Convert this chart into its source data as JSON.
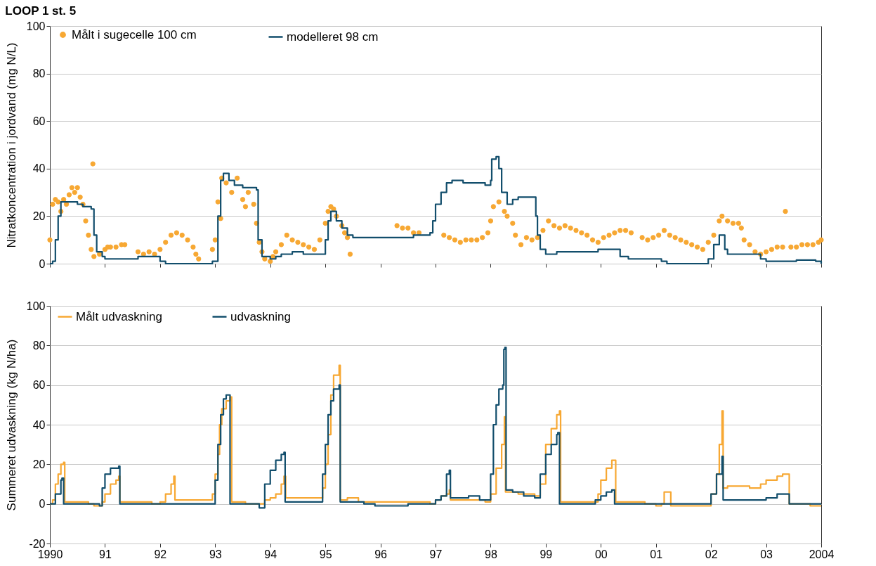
{
  "chart_data": [
    {
      "type": "step",
      "title": "LOOP 1 st. 5",
      "ylabel": "Nitratkoncentration i jordvand (mg N/L)",
      "xlim": [
        1990,
        2004
      ],
      "xticks": [
        {
          "value": 1990,
          "label": null
        },
        {
          "value": 1991,
          "label": null
        },
        {
          "value": 1992,
          "label": null
        },
        {
          "value": 1993,
          "label": null
        },
        {
          "value": 1994,
          "label": null
        },
        {
          "value": 1995,
          "label": null
        },
        {
          "value": 1996,
          "label": null
        },
        {
          "value": 1997,
          "label": null
        },
        {
          "value": 1998,
          "label": null
        },
        {
          "value": 1999,
          "label": null
        },
        {
          "value": 2000,
          "label": null
        },
        {
          "value": 2001,
          "label": null
        },
        {
          "value": 2002,
          "label": null
        },
        {
          "value": 2003,
          "label": null
        },
        {
          "value": 2004,
          "label": null
        }
      ],
      "ylim": [
        0,
        100
      ],
      "yticks": [
        0,
        20,
        40,
        60,
        80,
        100
      ],
      "grid": "y",
      "legend": "top left",
      "tick_labels": "y",
      "series": [
        {
          "name": "Målt i sugecelle 100 cm",
          "type": "scatter",
          "color": "#f7a833",
          "x": [
            1990.0,
            1990.05,
            1990.1,
            1990.15,
            1990.2,
            1990.25,
            1990.3,
            1990.35,
            1990.4,
            1990.45,
            1990.5,
            1990.55,
            1990.6,
            1990.65,
            1990.7,
            1990.75,
            1990.78,
            1990.8,
            1990.9,
            1991.0,
            1991.05,
            1991.1,
            1991.2,
            1991.3,
            1991.36,
            1991.6,
            1991.7,
            1991.8,
            1991.9,
            1992.0,
            1992.1,
            1992.2,
            1992.3,
            1992.4,
            1992.5,
            1992.6,
            1992.65,
            1992.7,
            1992.95,
            1993.0,
            1993.05,
            1993.1,
            1993.12,
            1993.2,
            1993.3,
            1993.4,
            1993.5,
            1993.55,
            1993.6,
            1993.7,
            1993.75,
            1993.8,
            1993.85,
            1993.9,
            1994.0,
            1994.05,
            1994.1,
            1994.2,
            1994.3,
            1994.4,
            1994.5,
            1994.6,
            1994.7,
            1994.8,
            1994.9,
            1995.0,
            1995.05,
            1995.1,
            1995.15,
            1995.2,
            1995.3,
            1995.35,
            1995.4,
            1995.45,
            1996.3,
            1996.4,
            1996.5,
            1996.6,
            1996.7,
            1997.15,
            1997.25,
            1997.35,
            1997.45,
            1997.55,
            1997.65,
            1997.75,
            1997.85,
            1997.95,
            1998.0,
            1998.05,
            1998.15,
            1998.25,
            1998.3,
            1998.4,
            1998.45,
            1998.55,
            1998.65,
            1998.75,
            1998.85,
            1998.95,
            1999.05,
            1999.15,
            1999.25,
            1999.35,
            1999.45,
            1999.55,
            1999.65,
            1999.75,
            1999.85,
            1999.95,
            2000.05,
            2000.15,
            2000.25,
            2000.35,
            2000.45,
            2000.55,
            2000.75,
            2000.85,
            2000.95,
            2001.05,
            2001.15,
            2001.25,
            2001.35,
            2001.45,
            2001.55,
            2001.65,
            2001.75,
            2001.85,
            2001.95,
            2002.05,
            2002.15,
            2002.2,
            2002.3,
            2002.4,
            2002.5,
            2002.55,
            2002.6,
            2002.7,
            2002.8,
            2002.9,
            2003.0,
            2003.1,
            2003.2,
            2003.3,
            2003.35,
            2003.45,
            2003.55,
            2003.65,
            2003.75,
            2003.85,
            2003.95,
            2004.0
          ],
          "values": [
            10,
            25,
            27,
            26,
            22,
            27,
            25,
            29,
            32,
            30,
            32,
            28,
            25,
            18,
            12,
            6,
            42,
            3,
            4,
            6,
            7,
            7,
            7,
            8,
            8,
            5,
            4,
            5,
            4,
            6,
            9,
            12,
            13,
            12,
            10,
            7,
            4,
            2,
            6,
            10,
            26,
            19,
            36,
            34,
            30,
            36,
            27,
            24,
            30,
            25,
            17,
            9,
            5,
            2,
            1,
            3,
            5,
            8,
            12,
            10,
            9,
            8,
            7,
            6,
            10,
            17,
            22,
            24,
            23,
            20,
            16,
            13,
            11,
            4,
            16,
            15,
            15,
            13,
            13,
            12,
            11,
            10,
            9,
            10,
            10,
            10,
            11,
            13,
            18,
            24,
            26,
            22,
            20,
            17,
            12,
            8,
            11,
            10,
            11,
            14,
            18,
            16,
            15,
            16,
            15,
            14,
            13,
            12,
            10,
            9,
            11,
            12,
            13,
            14,
            14,
            13,
            11,
            10,
            11,
            12,
            14,
            12,
            11,
            10,
            9,
            8,
            7,
            6,
            9,
            12,
            18,
            20,
            18,
            17,
            17,
            15,
            10,
            8,
            5,
            4,
            5,
            6,
            7,
            7,
            22,
            7,
            7,
            8,
            8,
            8,
            9,
            10
          ]
        },
        {
          "name": "modelleret 98 cm",
          "color": "#124e6c",
          "x": [
            1990.0,
            1990.05,
            1990.1,
            1990.15,
            1990.2,
            1990.4,
            1990.5,
            1990.6,
            1990.75,
            1990.8,
            1990.85,
            1990.95,
            1991.0,
            1991.5,
            1991.6,
            1991.9,
            1992.0,
            1992.1,
            1992.9,
            1992.95,
            1993.05,
            1993.1,
            1993.15,
            1993.25,
            1993.35,
            1993.5,
            1993.75,
            1993.78,
            1993.85,
            1994.0,
            1994.1,
            1994.2,
            1994.4,
            1994.6,
            1994.9,
            1995.0,
            1995.05,
            1995.1,
            1995.2,
            1995.3,
            1995.4,
            1995.5,
            1996.5,
            1996.6,
            1996.9,
            1996.95,
            1997.0,
            1997.1,
            1997.2,
            1997.3,
            1997.5,
            1997.9,
            1998.0,
            1998.02,
            1998.1,
            1998.15,
            1998.2,
            1998.3,
            1998.4,
            1998.5,
            1998.8,
            1998.82,
            1998.85,
            1998.9,
            1999.0,
            1999.2,
            1999.9,
            1999.95,
            2000.2,
            2000.35,
            2000.5,
            2001.0,
            2001.1,
            2001.2,
            2001.9,
            2001.95,
            2002.05,
            2002.15,
            2002.25,
            2002.3,
            2002.8,
            2002.9,
            2003.0,
            2003.5,
            2003.55,
            2003.9,
            2004.0
          ],
          "values": [
            0,
            1,
            10,
            20,
            26,
            26,
            25,
            24,
            23,
            12,
            5,
            3,
            2,
            2,
            3,
            3,
            1,
            0,
            0,
            1,
            20,
            35,
            38,
            35,
            33,
            32,
            31,
            10,
            3,
            2,
            3,
            4,
            5,
            4,
            4,
            10,
            18,
            22,
            18,
            15,
            12,
            11,
            11,
            12,
            13,
            18,
            25,
            30,
            34,
            35,
            34,
            33,
            35,
            44,
            45,
            40,
            30,
            25,
            27,
            28,
            28,
            20,
            12,
            6,
            4,
            5,
            5,
            6,
            6,
            3,
            2,
            2,
            1,
            0,
            0,
            2,
            8,
            12,
            6,
            4,
            4,
            2,
            1,
            1,
            1.5,
            1,
            0
          ]
        }
      ]
    },
    {
      "type": "step",
      "ylabel": "Summeret udvaskning (kg N/ha)",
      "xlim": [
        1990,
        2004
      ],
      "xticks": [
        {
          "value": 1990,
          "label": "1990"
        },
        {
          "value": 1991,
          "label": "91"
        },
        {
          "value": 1992,
          "label": "92"
        },
        {
          "value": 1993,
          "label": "93"
        },
        {
          "value": 1994,
          "label": "94"
        },
        {
          "value": 1995,
          "label": "95"
        },
        {
          "value": 1996,
          "label": "96"
        },
        {
          "value": 1997,
          "label": "97"
        },
        {
          "value": 1998,
          "label": "98"
        },
        {
          "value": 1999,
          "label": "99"
        },
        {
          "value": 2000,
          "label": "00"
        },
        {
          "value": 2001,
          "label": "01"
        },
        {
          "value": 2002,
          "label": "02"
        },
        {
          "value": 2003,
          "label": "03"
        },
        {
          "value": 2004,
          "label": "2004"
        }
      ],
      "ylim": [
        -20,
        100
      ],
      "yticks": [
        -20,
        0,
        20,
        40,
        60,
        80,
        100
      ],
      "grid": "y",
      "legend": "top left",
      "series": [
        {
          "name": "Målt udvaskning",
          "color": "#f7a833",
          "x": [
            1990.0,
            1990.05,
            1990.1,
            1990.15,
            1990.2,
            1990.25,
            1990.27,
            1990.5,
            1990.7,
            1990.8,
            1990.9,
            1990.95,
            1991.0,
            1991.1,
            1991.2,
            1991.25,
            1991.27,
            1991.8,
            1991.85,
            1992.0,
            1992.1,
            1992.2,
            1992.25,
            1992.27,
            1992.9,
            1992.95,
            1993.0,
            1993.05,
            1993.08,
            1993.12,
            1993.2,
            1993.27,
            1993.3,
            1993.5,
            1993.55,
            1993.8,
            1993.9,
            1994.0,
            1994.1,
            1994.2,
            1994.25,
            1994.28,
            1994.9,
            1994.95,
            1995.0,
            1995.05,
            1995.1,
            1995.15,
            1995.25,
            1995.27,
            1995.4,
            1995.6,
            1996.0,
            1996.9,
            1997.0,
            1997.1,
            1997.2,
            1997.25,
            1997.27,
            1997.9,
            1998.0,
            1998.1,
            1998.2,
            1998.25,
            1998.27,
            1998.5,
            1998.8,
            1998.9,
            1999.0,
            1999.1,
            1999.2,
            1999.25,
            1999.27,
            1999.9,
            1999.95,
            2000.0,
            2000.1,
            2000.2,
            2000.25,
            2000.27,
            2000.8,
            2001.0,
            2001.1,
            2001.15,
            2001.25,
            2001.27,
            2001.9,
            2002.0,
            2002.1,
            2002.15,
            2002.2,
            2002.22,
            2002.3,
            2002.7,
            2002.9,
            2003.0,
            2003.2,
            2003.3,
            2003.4,
            2003.42,
            2003.7,
            2003.8,
            2004.0
          ],
          "values": [
            0,
            2,
            10,
            15,
            20,
            21,
            1,
            1,
            0,
            -1,
            -1,
            1,
            5,
            10,
            12,
            14,
            1,
            1,
            0,
            1,
            5,
            10,
            14,
            2,
            2,
            5,
            15,
            25,
            40,
            48,
            52,
            54,
            1,
            1,
            0,
            0,
            2,
            3,
            5,
            10,
            14,
            3,
            3,
            8,
            20,
            35,
            55,
            65,
            70,
            2,
            3,
            1,
            1,
            0,
            2,
            4,
            5,
            7,
            2,
            1,
            5,
            18,
            30,
            44,
            6,
            5,
            4,
            10,
            30,
            38,
            45,
            47,
            1,
            1,
            5,
            12,
            18,
            22,
            22,
            1,
            0,
            -1,
            0,
            6,
            6,
            -1,
            -1,
            5,
            15,
            30,
            47,
            8,
            9,
            8,
            10,
            12,
            14,
            15,
            15,
            0,
            0,
            -1,
            -1
          ]
        },
        {
          "name": "udvaskning",
          "color": "#124e6c",
          "x": [
            1990.0,
            1990.1,
            1990.2,
            1990.22,
            1990.25,
            1990.5,
            1990.9,
            1990.95,
            1991.0,
            1991.1,
            1991.25,
            1991.27,
            1992.0,
            1992.9,
            1993.0,
            1993.05,
            1993.1,
            1993.15,
            1993.2,
            1993.25,
            1993.27,
            1993.5,
            1993.8,
            1993.9,
            1994.0,
            1994.1,
            1994.2,
            1994.25,
            1994.27,
            1994.8,
            1994.95,
            1995.0,
            1995.05,
            1995.1,
            1995.15,
            1995.25,
            1995.27,
            1995.5,
            1995.7,
            1995.9,
            1996.2,
            1996.5,
            1996.9,
            1997.0,
            1997.1,
            1997.2,
            1997.25,
            1997.27,
            1997.6,
            1997.8,
            1998.0,
            1998.05,
            1998.1,
            1998.15,
            1998.22,
            1998.24,
            1998.26,
            1998.28,
            1998.4,
            1998.6,
            1998.8,
            1998.9,
            1999.0,
            1999.1,
            1999.2,
            1999.22,
            1999.25,
            1999.8,
            1999.9,
            2000.0,
            2000.1,
            2000.2,
            2000.25,
            2001.0,
            2001.9,
            2002.0,
            2002.1,
            2002.2,
            2002.22,
            2003.0,
            2003.2,
            2003.4,
            2003.42,
            2004.0
          ],
          "values": [
            0,
            5,
            12,
            13,
            0,
            0,
            -1,
            8,
            15,
            18,
            19,
            0,
            0,
            0,
            12,
            30,
            45,
            53,
            55,
            55,
            0,
            0,
            -2,
            10,
            17,
            22,
            25,
            26,
            1,
            1,
            15,
            30,
            45,
            52,
            58,
            60,
            1,
            1,
            0,
            -1,
            -1,
            0,
            0,
            2,
            4,
            15,
            17,
            3,
            4,
            2,
            15,
            40,
            50,
            58,
            60,
            78,
            79,
            7,
            6,
            4,
            3,
            15,
            25,
            30,
            35,
            36,
            0,
            0,
            2,
            4,
            6,
            7,
            0,
            0,
            0,
            5,
            15,
            24,
            2,
            3,
            5,
            5,
            0,
            0
          ]
        }
      ]
    }
  ]
}
